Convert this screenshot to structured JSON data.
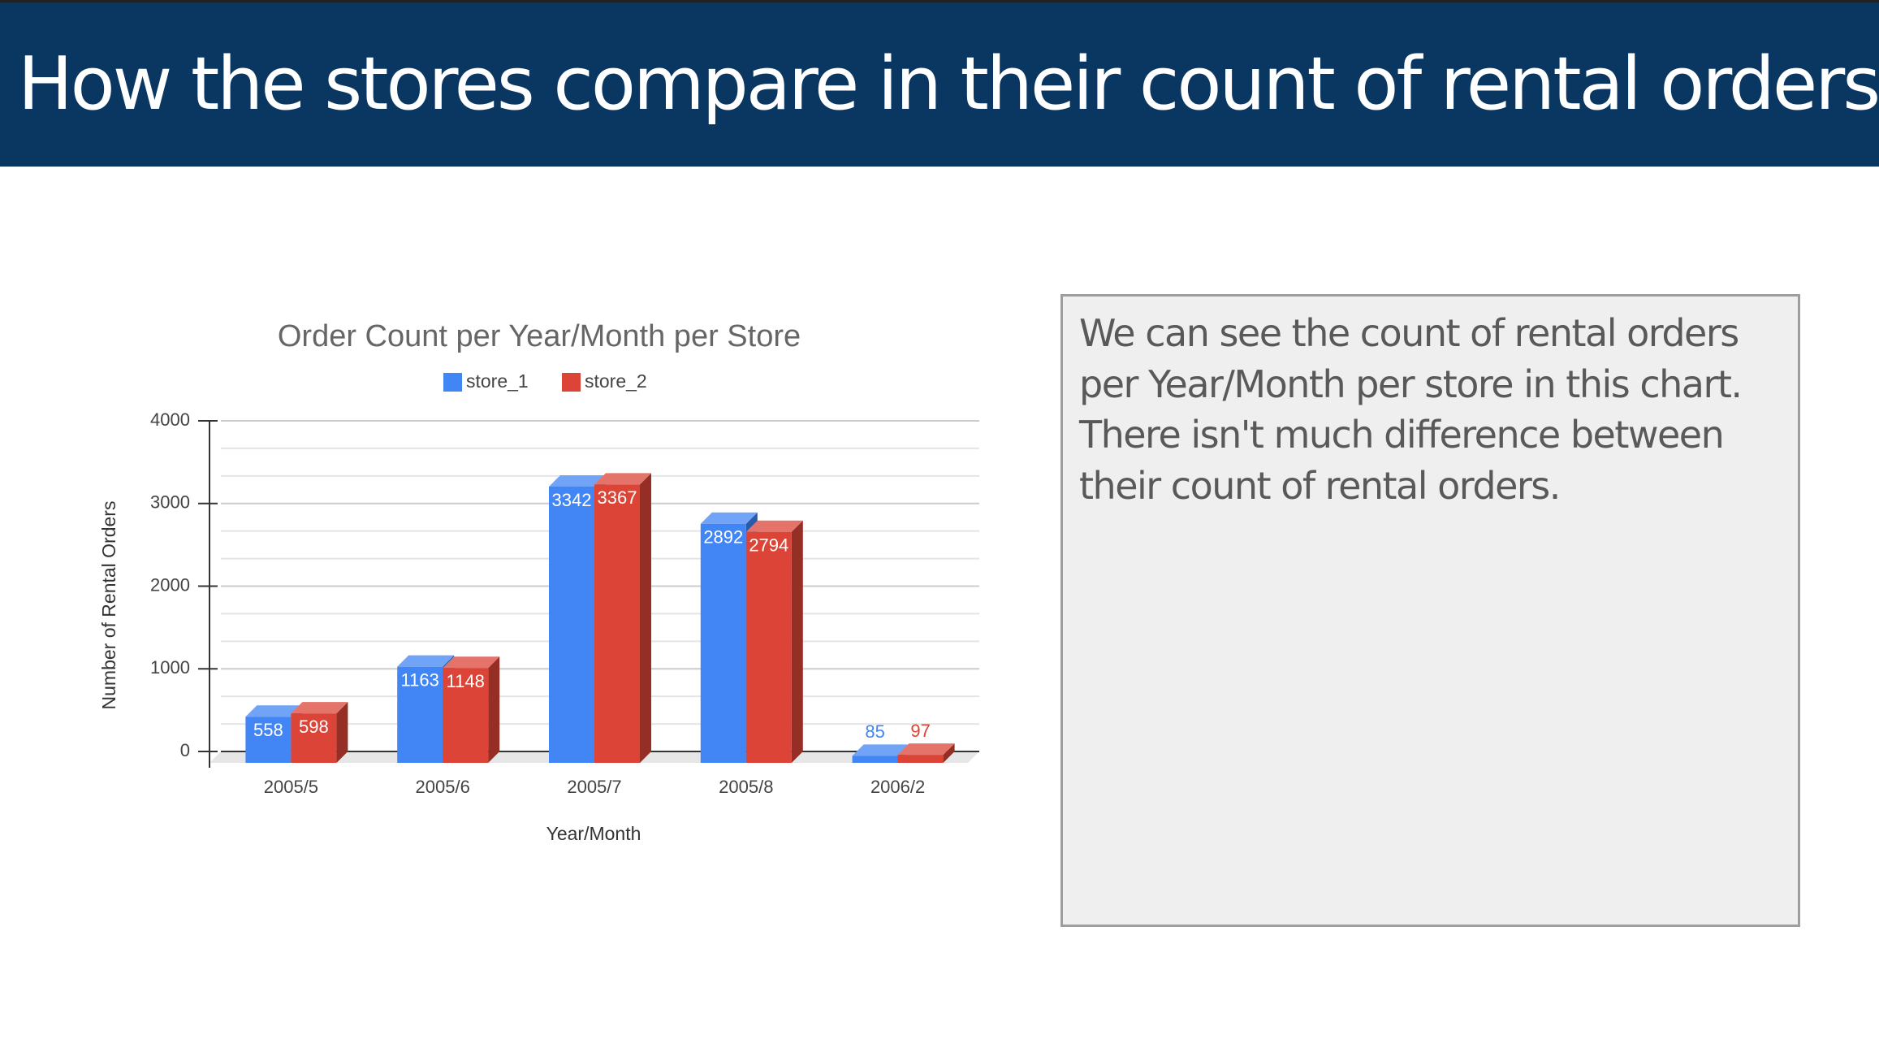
{
  "slide_title": "How the stores compare in their count of rental orders?",
  "text_box": [
    "We can see the count of rental orders",
    "per Year/Month per store in this chart.",
    "There isn't much difference between",
    "their count of rental orders."
  ],
  "chart_data": {
    "type": "bar3d",
    "title": "Order Count per Year/Month per Store",
    "x_label": "Year/Month",
    "y_label": "Number of Rental Orders",
    "categories": [
      "2005/5",
      "2005/6",
      "2005/7",
      "2005/8",
      "2006/2"
    ],
    "series": [
      {
        "name": "store_1",
        "color": "#4285f4",
        "values": [
          558,
          1163,
          3342,
          2892,
          85
        ]
      },
      {
        "name": "store_2",
        "color": "#db4437",
        "values": [
          598,
          1148,
          3367,
          2794,
          97
        ]
      }
    ],
    "ylim": [
      0,
      4000
    ],
    "yticks": [
      0,
      1000,
      2000,
      3000,
      4000
    ],
    "grid": true,
    "legend": "top"
  }
}
